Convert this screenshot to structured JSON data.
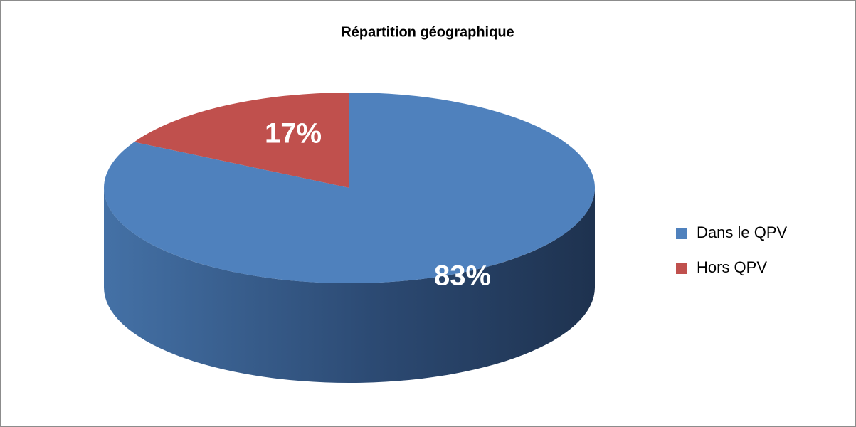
{
  "chart_data": {
    "type": "pie",
    "title": "Répartition géographique",
    "categories": [
      "Dans le QPV",
      "Hors QPV"
    ],
    "values": [
      83,
      17
    ],
    "value_labels": [
      "83%",
      "17%"
    ],
    "colors": [
      "#4f81bd",
      "#c0504d"
    ],
    "legend": "right"
  }
}
